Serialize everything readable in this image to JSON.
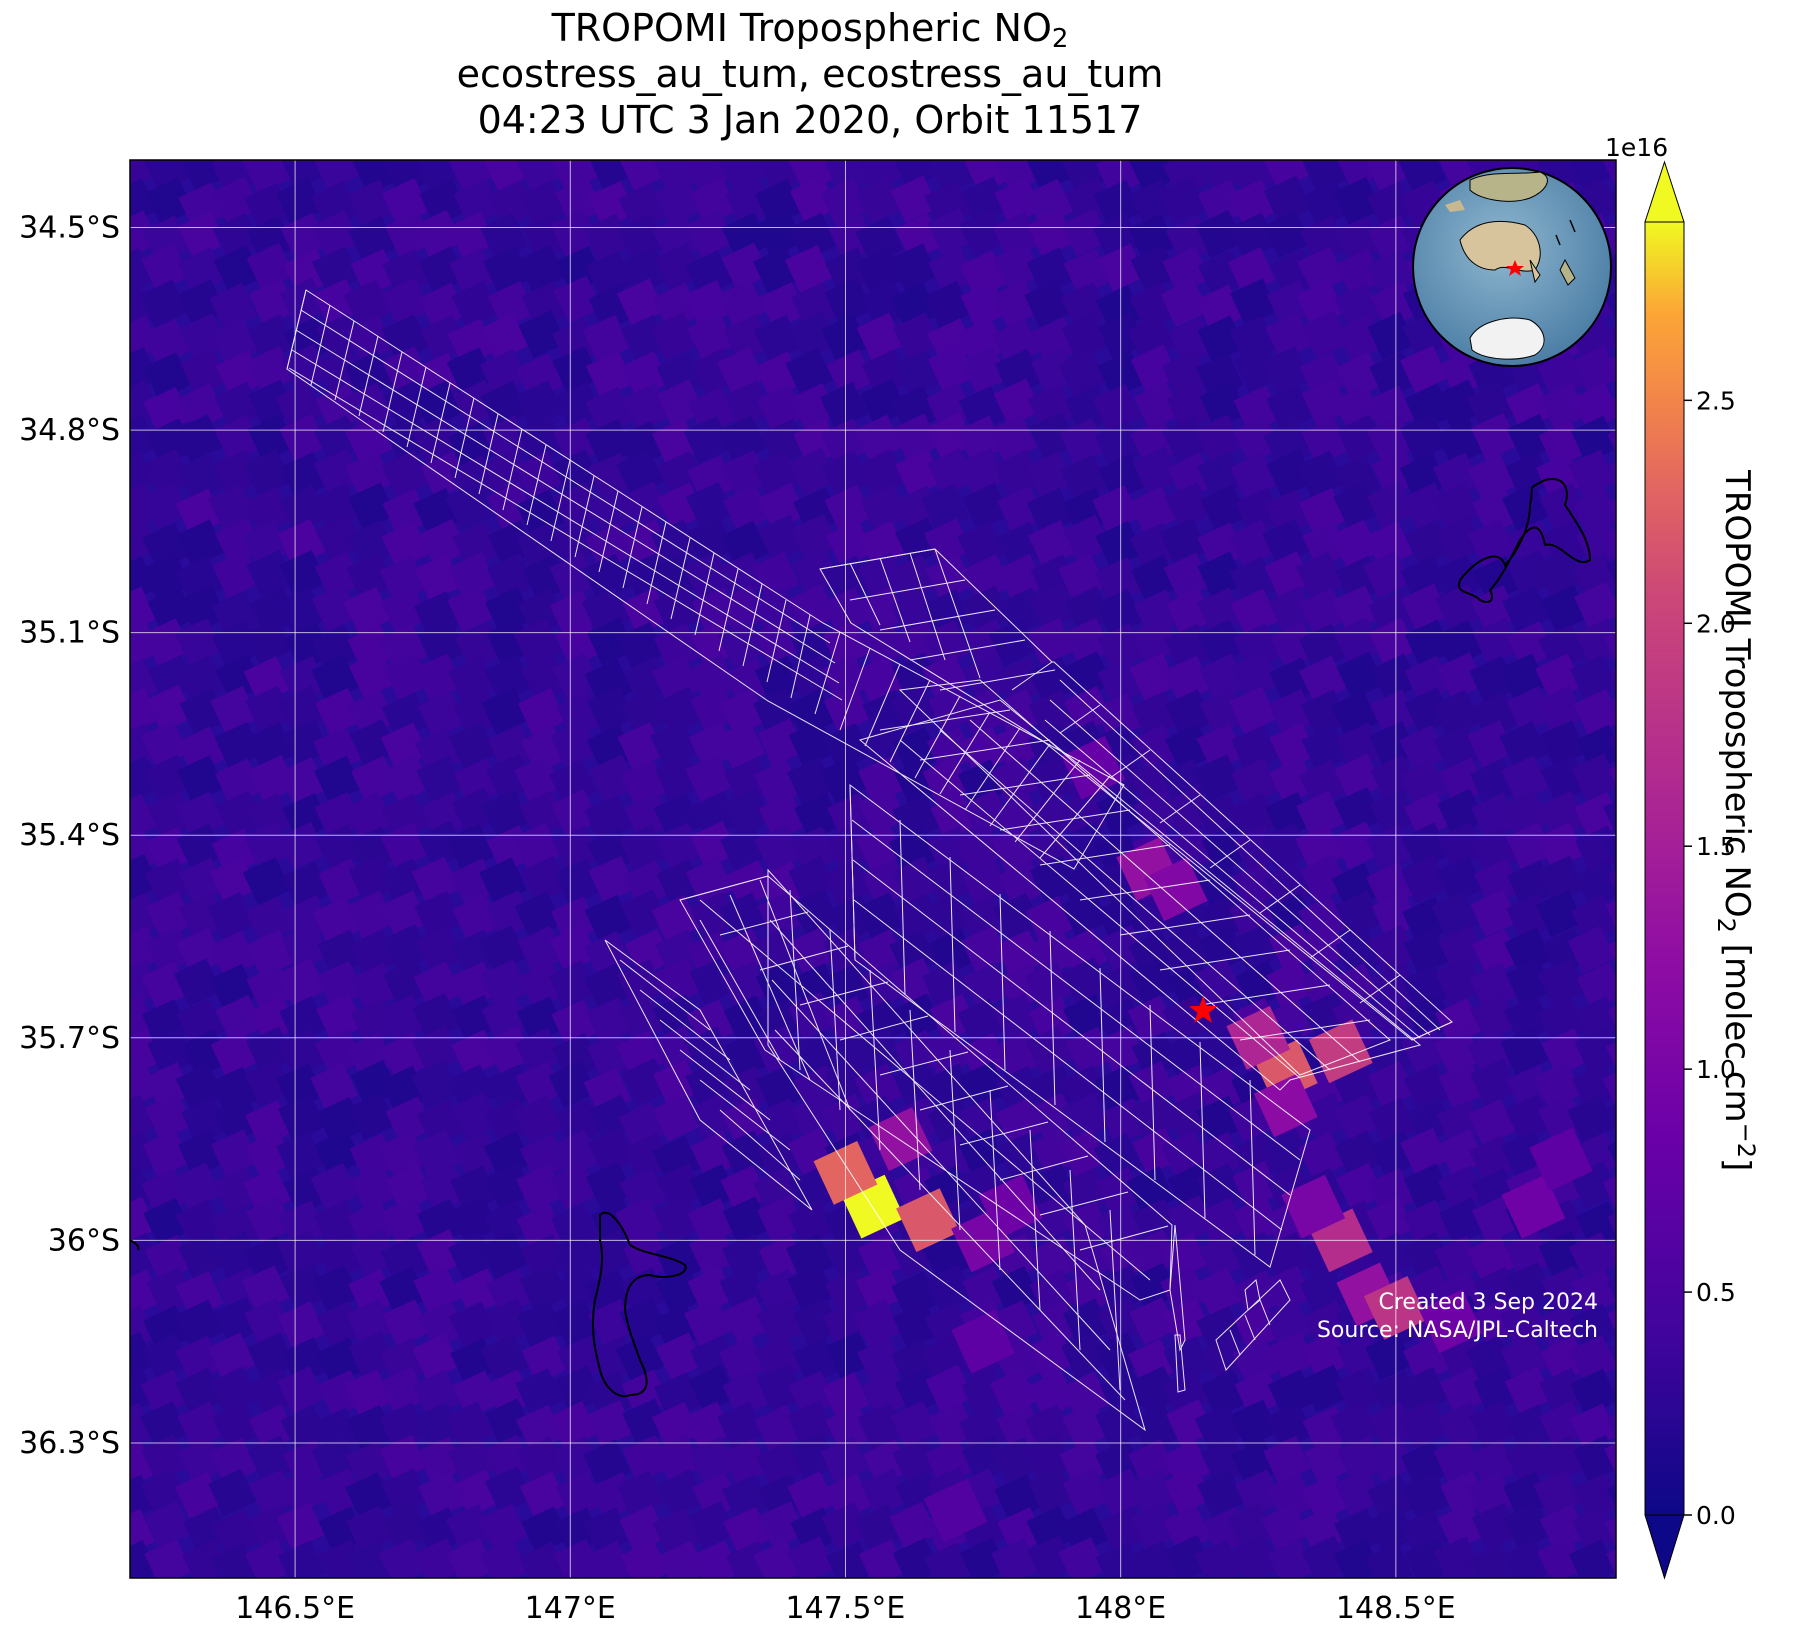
{
  "title": {
    "line1_prefix": "TROPOMI Tropospheric NO",
    "line1_sub": "2",
    "line2": "ecostress_au_tum, ecostress_au_tum",
    "line3": "04:23 UTC 3 Jan 2020, Orbit 11517"
  },
  "map": {
    "lon_range": [
      146.2,
      148.9
    ],
    "lat_range": [
      -36.5,
      -34.4
    ],
    "lon_ticks": [
      {
        "value": 146.5,
        "label": "146.5°E"
      },
      {
        "value": 147.0,
        "label": "147°E"
      },
      {
        "value": 147.5,
        "label": "147.5°E"
      },
      {
        "value": 148.0,
        "label": "148°E"
      },
      {
        "value": 148.5,
        "label": "148.5°E"
      }
    ],
    "lat_ticks": [
      {
        "value": -34.5,
        "label": "34.5°S"
      },
      {
        "value": -34.8,
        "label": "34.8°S"
      },
      {
        "value": -35.1,
        "label": "35.1°S"
      },
      {
        "value": -35.4,
        "label": "35.4°S"
      },
      {
        "value": -35.7,
        "label": "35.7°S"
      },
      {
        "value": -36.0,
        "label": "36°S"
      },
      {
        "value": -36.3,
        "label": "36.3°S"
      }
    ],
    "grid": true,
    "background_color": "#2a0a9a",
    "site_marker": {
      "lon": 148.15,
      "lat": -35.66,
      "color": "#ff0000",
      "icon": "star-icon"
    },
    "inset": "globe-locator-icon"
  },
  "hotspots": [
    {
      "lon": 147.55,
      "lat": -35.95,
      "value": 2.9
    },
    {
      "lon": 147.5,
      "lat": -35.9,
      "value": 2.3
    },
    {
      "lon": 147.65,
      "lat": -35.97,
      "value": 2.2
    },
    {
      "lon": 147.6,
      "lat": -35.85,
      "value": 1.3
    },
    {
      "lon": 147.75,
      "lat": -36.0,
      "value": 1.0
    },
    {
      "lon": 148.3,
      "lat": -35.75,
      "value": 2.2
    },
    {
      "lon": 148.4,
      "lat": -35.72,
      "value": 1.9
    },
    {
      "lon": 148.25,
      "lat": -35.7,
      "value": 1.6
    },
    {
      "lon": 148.3,
      "lat": -35.8,
      "value": 1.2
    },
    {
      "lon": 148.05,
      "lat": -35.45,
      "value": 1.3
    },
    {
      "lon": 148.1,
      "lat": -35.48,
      "value": 1.1
    },
    {
      "lon": 147.95,
      "lat": -35.3,
      "value": 0.8
    },
    {
      "lon": 148.4,
      "lat": -36.0,
      "value": 1.7
    },
    {
      "lon": 148.45,
      "lat": -36.08,
      "value": 1.3
    },
    {
      "lon": 148.5,
      "lat": -36.1,
      "value": 1.8
    },
    {
      "lon": 148.35,
      "lat": -35.95,
      "value": 1.0
    },
    {
      "lon": 148.6,
      "lat": -36.12,
      "value": 0.9
    },
    {
      "lon": 148.75,
      "lat": -35.95,
      "value": 0.9
    },
    {
      "lon": 148.8,
      "lat": -35.88,
      "value": 0.7
    },
    {
      "lon": 147.8,
      "lat": -35.95,
      "value": 0.9
    },
    {
      "lon": 147.75,
      "lat": -36.15,
      "value": 0.7
    },
    {
      "lon": 147.7,
      "lat": -36.4,
      "value": 0.6
    }
  ],
  "colorbar": {
    "label_prefix": "TROPOMI Tropospheric NO",
    "label_sub": "2",
    "label_suffix": " [molec cm",
    "label_sup": "−2",
    "label_end": "]",
    "multiplier": "1e16",
    "range": [
      0.0,
      2.9
    ],
    "ticks": [
      "0.0",
      "0.5",
      "1.0",
      "1.5",
      "2.0",
      "2.5"
    ],
    "tick_values": [
      0.0,
      0.5,
      1.0,
      1.5,
      2.0,
      2.5
    ],
    "colormap": "plasma"
  },
  "credits": {
    "created": "Created 3 Sep 2024",
    "source": "Source: NASA/JPL-Caltech"
  }
}
